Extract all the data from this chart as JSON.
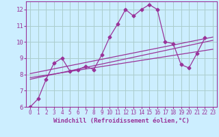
{
  "xlabel": "Windchill (Refroidissement éolien,°C)",
  "background_color": "#cceeff",
  "grid_color": "#aacccc",
  "line_color": "#993399",
  "xlim": [
    -0.5,
    23.5
  ],
  "ylim": [
    6,
    12.5
  ],
  "yticks": [
    6,
    7,
    8,
    9,
    10,
    11,
    12
  ],
  "xticks": [
    0,
    1,
    2,
    3,
    4,
    5,
    6,
    7,
    8,
    9,
    10,
    11,
    12,
    13,
    14,
    15,
    16,
    17,
    18,
    19,
    20,
    21,
    22,
    23
  ],
  "main_x": [
    0,
    1,
    2,
    3,
    4,
    5,
    6,
    7,
    8,
    9,
    10,
    11,
    12,
    13,
    14,
    15,
    16,
    17,
    18,
    19,
    20,
    21,
    22
  ],
  "main_y": [
    6.0,
    6.5,
    7.7,
    8.7,
    9.0,
    8.2,
    8.3,
    8.5,
    8.3,
    9.2,
    10.3,
    11.1,
    12.0,
    11.6,
    12.0,
    12.3,
    12.0,
    10.0,
    9.9,
    8.6,
    8.4,
    9.3,
    10.25
  ],
  "trend_lines": [
    {
      "x": [
        0,
        23
      ],
      "y": [
        7.7,
        10.1
      ]
    },
    {
      "x": [
        0,
        23
      ],
      "y": [
        7.8,
        9.55
      ]
    },
    {
      "x": [
        0,
        23
      ],
      "y": [
        8.05,
        10.3
      ]
    }
  ],
  "xlabel_fontsize": 6.5,
  "tick_fontsize_x": 5.5,
  "tick_fontsize_y": 6.5
}
